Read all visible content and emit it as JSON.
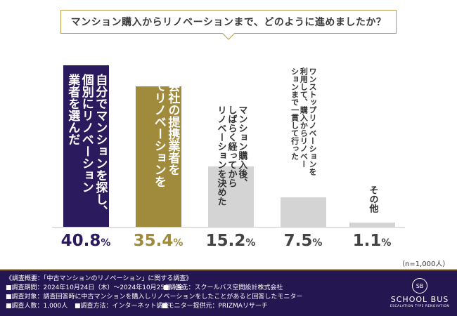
{
  "title": "マンション購入からリノベーションまで、どのように進めましたか？",
  "chart_data": {
    "type": "bar",
    "categories": [
      "自分でマンションを探し、個別にリノベーション業者を選んだ",
      "不動産会社の提携業者を利用してリノベーションを行った",
      "マンション購入後、しばらく経ってからリノベーションを決めた",
      "ワンストップリノベーションを利用して、購入からリノベーションまで一貫して行った",
      "その他"
    ],
    "values": [
      40.8,
      35.4,
      15.2,
      7.5,
      1.1
    ],
    "value_labels": [
      {
        "num": "40.8",
        "unit": "%"
      },
      {
        "num": "35.4",
        "unit": "%"
      },
      {
        "num": "15.2",
        "unit": "%"
      },
      {
        "num": "7.5",
        "unit": "%"
      },
      {
        "num": "1.1",
        "unit": "%"
      }
    ],
    "ylim": [
      0,
      40.8
    ],
    "colors": [
      "#2b1a5e",
      "#a08a3c",
      "#d4d4d4",
      "#d4d4d4",
      "#d4d4d4"
    ],
    "text_colors": [
      "#ffffff",
      "#ffffff",
      "#333333",
      "#333333",
      "#333333"
    ]
  },
  "n_count": "（n=1,000人）",
  "footer": {
    "heading": "《調査概要：「中古マンションのリノベーション」に関する調査》",
    "period": "■調査期間：2024年10月24日（木）〜2024年10月25日（金）",
    "conductor": "■調査元：スクールバス空間設計株式会社",
    "target": "■調査対象：調査回答時に中古マンションを購入しリノベーションをしたことがあると回答したモニター",
    "people": "■調査人数：1,000人",
    "method": "■調査方法：インターネット調査",
    "provider": "■モニター提供元：PRIZMAリサーチ",
    "logo_mark": "SB",
    "logo_name": "SCHOOL BUS",
    "logo_sub": "ESCALATION TYPE RENOVATION"
  }
}
